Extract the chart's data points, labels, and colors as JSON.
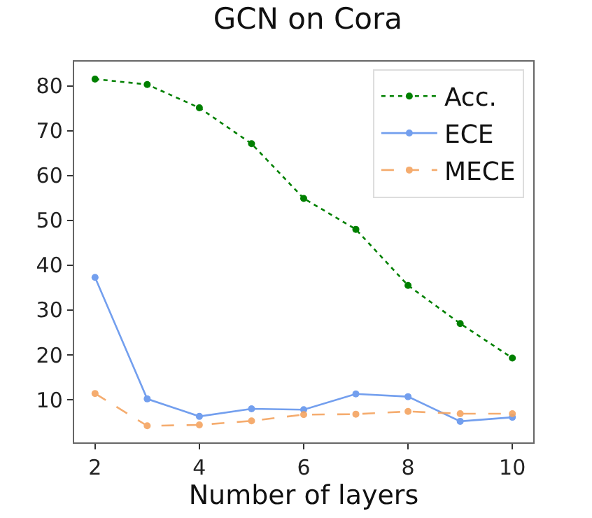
{
  "chart_data": {
    "type": "line",
    "title": "GCN on Cora",
    "xlabel": "Number of layers",
    "x": [
      2,
      3,
      4,
      5,
      6,
      7,
      8,
      9,
      10
    ],
    "series": [
      {
        "name": "Acc.",
        "color": "#008000",
        "line_style": "dotted",
        "values": [
          81.5,
          80.3,
          75.1,
          67.1,
          54.9,
          48,
          35.5,
          27,
          19.3
        ]
      },
      {
        "name": "ECE",
        "color": "#6495ed",
        "line_style": "solid",
        "values": [
          37.3,
          10.2,
          6.3,
          8,
          7.8,
          11.3,
          10.7,
          5.2,
          6.1
        ]
      },
      {
        "name": "MECE",
        "color": "#f4a460",
        "line_style": "dashed",
        "values": [
          11.4,
          4.2,
          4.4,
          5.3,
          6.7,
          6.8,
          7.4,
          6.9,
          6.9
        ]
      }
    ],
    "xlim": [
      1.6,
      10.4
    ],
    "xticks": [
      2,
      4,
      6,
      8,
      10
    ],
    "ylim": [
      0.5,
      85.4
    ],
    "yticks": [
      10,
      20,
      30,
      40,
      50,
      60,
      70,
      80
    ],
    "marker": "circle",
    "legend": "top right"
  }
}
